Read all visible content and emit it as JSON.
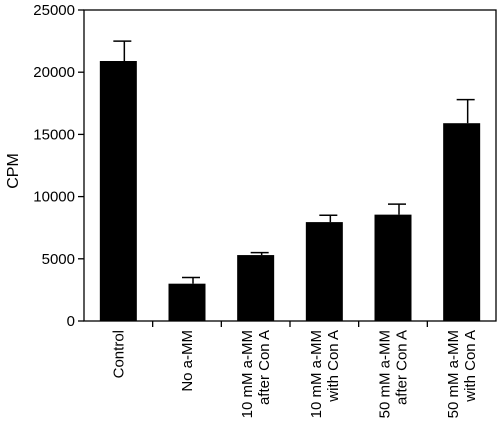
{
  "chart_data": {
    "type": "bar",
    "categories": [
      [
        "Control"
      ],
      [
        "No a-MM"
      ],
      [
        "10 mM  a-MM",
        "after Con A"
      ],
      [
        "10 mM  a-MM",
        "with Con A"
      ],
      [
        "50 mM  a-MM",
        "after Con A"
      ],
      [
        "50 mM  a-MM",
        "with Con A"
      ]
    ],
    "values": [
      20900,
      3000,
      5300,
      7950,
      8550,
      15900
    ],
    "errors": [
      1600,
      500,
      200,
      550,
      850,
      1900
    ],
    "ylabel": "CPM",
    "xlabel": "",
    "ylim": [
      0,
      25000
    ],
    "yticks": [
      0,
      5000,
      10000,
      15000,
      20000,
      25000
    ],
    "bar_color": "#000000",
    "grid": false
  }
}
